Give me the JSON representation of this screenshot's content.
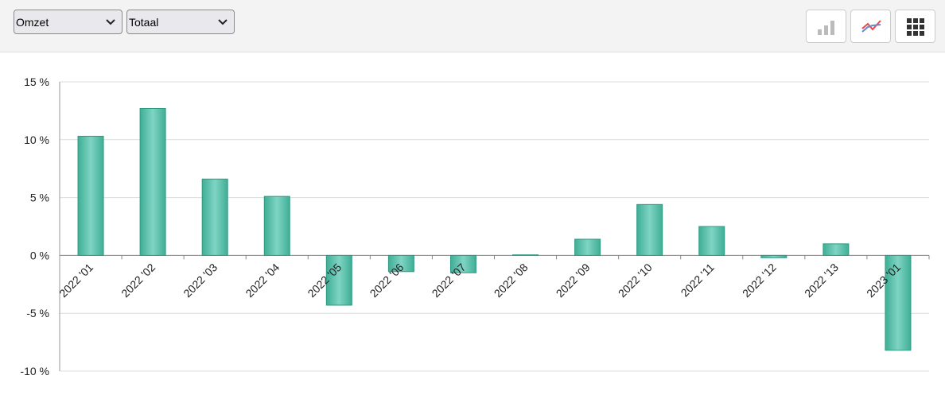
{
  "toolbar": {
    "selects": [
      "Omzet",
      "Totaal"
    ]
  },
  "chart_data": {
    "type": "bar",
    "categories": [
      "2022 '01",
      "2022 '02",
      "2022 '03",
      "2022 '04",
      "2022 '05",
      "2022 '06",
      "2022 '07",
      "2022 '08",
      "2022 '09",
      "2022 '10",
      "2022 '11",
      "2022 '12",
      "2022 '13",
      "2023 '01"
    ],
    "values": [
      10.3,
      12.7,
      6.6,
      5.1,
      -4.3,
      -1.4,
      -1.5,
      0.05,
      1.4,
      4.4,
      2.5,
      -0.2,
      1.0,
      -8.2
    ],
    "color": "#5cc6b0",
    "ylim": [
      -10,
      15
    ],
    "yticks": [
      {
        "value": -10,
        "label": "-10 %"
      },
      {
        "value": -5,
        "label": "-5 %"
      },
      {
        "value": 0,
        "label": "0 %"
      },
      {
        "value": 5,
        "label": "5 %"
      },
      {
        "value": 10,
        "label": "10 %"
      },
      {
        "value": 15,
        "label": "15 %"
      }
    ],
    "grid": true
  }
}
